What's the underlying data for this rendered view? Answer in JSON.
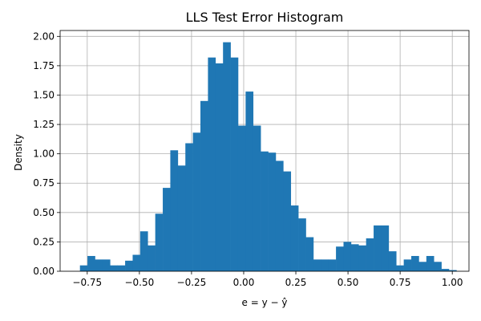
{
  "chart_data": {
    "type": "histogram",
    "title": "LLS Test Error Histogram",
    "xlabel": "e = y − ŷ",
    "ylabel": "Density",
    "xlim": [
      -0.88,
      1.08
    ],
    "ylim": [
      0,
      2.05
    ],
    "grid": true,
    "bar_color": "#1f77b4",
    "x_ticks": [
      -0.75,
      -0.5,
      -0.25,
      0.0,
      0.25,
      0.5,
      0.75,
      1.0
    ],
    "x_tick_labels": [
      "−0.75",
      "−0.50",
      "−0.25",
      "0.00",
      "0.25",
      "0.50",
      "0.75",
      "1.00"
    ],
    "y_ticks": [
      0.0,
      0.25,
      0.5,
      0.75,
      1.0,
      1.25,
      1.5,
      1.75,
      2.0
    ],
    "y_tick_labels": [
      "0.00",
      "0.25",
      "0.50",
      "0.75",
      "1.00",
      "1.25",
      "1.50",
      "1.75",
      "2.00"
    ],
    "bin_start": -0.785,
    "bin_width": 0.0361,
    "densities": [
      0.05,
      0.13,
      0.1,
      0.1,
      0.05,
      0.05,
      0.09,
      0.14,
      0.34,
      0.22,
      0.49,
      0.71,
      1.03,
      0.9,
      1.09,
      1.18,
      1.45,
      1.82,
      1.77,
      1.95,
      1.82,
      1.24,
      1.53,
      1.24,
      1.02,
      1.01,
      0.94,
      0.85,
      0.56,
      0.45,
      0.29,
      0.1,
      0.1,
      0.1,
      0.21,
      0.25,
      0.23,
      0.22,
      0.28,
      0.39,
      0.39,
      0.17,
      0.05,
      0.1,
      0.13,
      0.08,
      0.13,
      0.08,
      0.02,
      0.01
    ]
  }
}
